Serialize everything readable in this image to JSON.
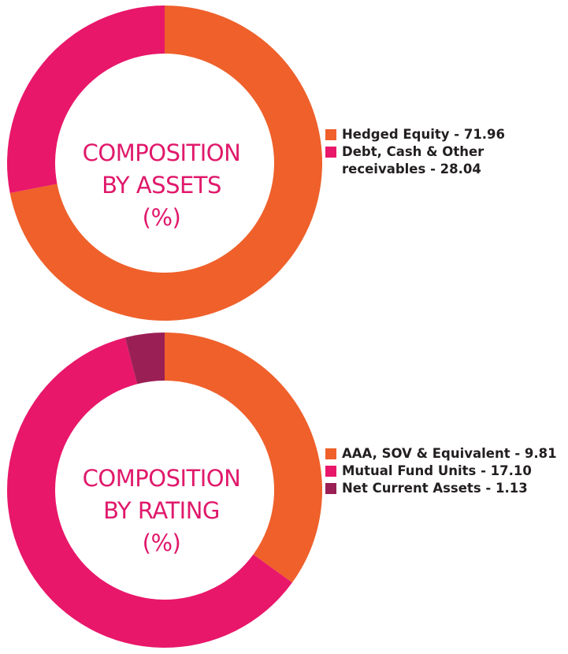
{
  "chart_data": [
    {
      "type": "pie",
      "donut": true,
      "center_text": [
        "COMPOSITION",
        "BY ASSETS",
        "(%)"
      ],
      "legend_position": "right",
      "slices": [
        {
          "label": "Hedged Equity - 71.96",
          "name": "Hedged Equity",
          "value": 71.96,
          "color": "#ef602b"
        },
        {
          "label": "Debt, Cash & Other receivables - 28.04",
          "name": "Debt, Cash & Other receivables",
          "value": 28.04,
          "color": "#e8176a"
        }
      ]
    },
    {
      "type": "pie",
      "donut": true,
      "center_text": [
        "COMPOSITION",
        "BY RATING",
        "(%)"
      ],
      "legend_position": "right",
      "slices": [
        {
          "label": "AAA, SOV & Equivalent - 9.81",
          "name": "AAA, SOV & Equivalent",
          "value": 9.81,
          "color": "#ef602b"
        },
        {
          "label": "Mutual Fund Units - 17.10",
          "name": "Mutual Fund Units",
          "value": 17.1,
          "color": "#e8176a"
        },
        {
          "label": "Net Current Assets - 1.13",
          "name": "Net Current Assets",
          "value": 1.13,
          "color": "#9a1f55"
        }
      ]
    }
  ]
}
